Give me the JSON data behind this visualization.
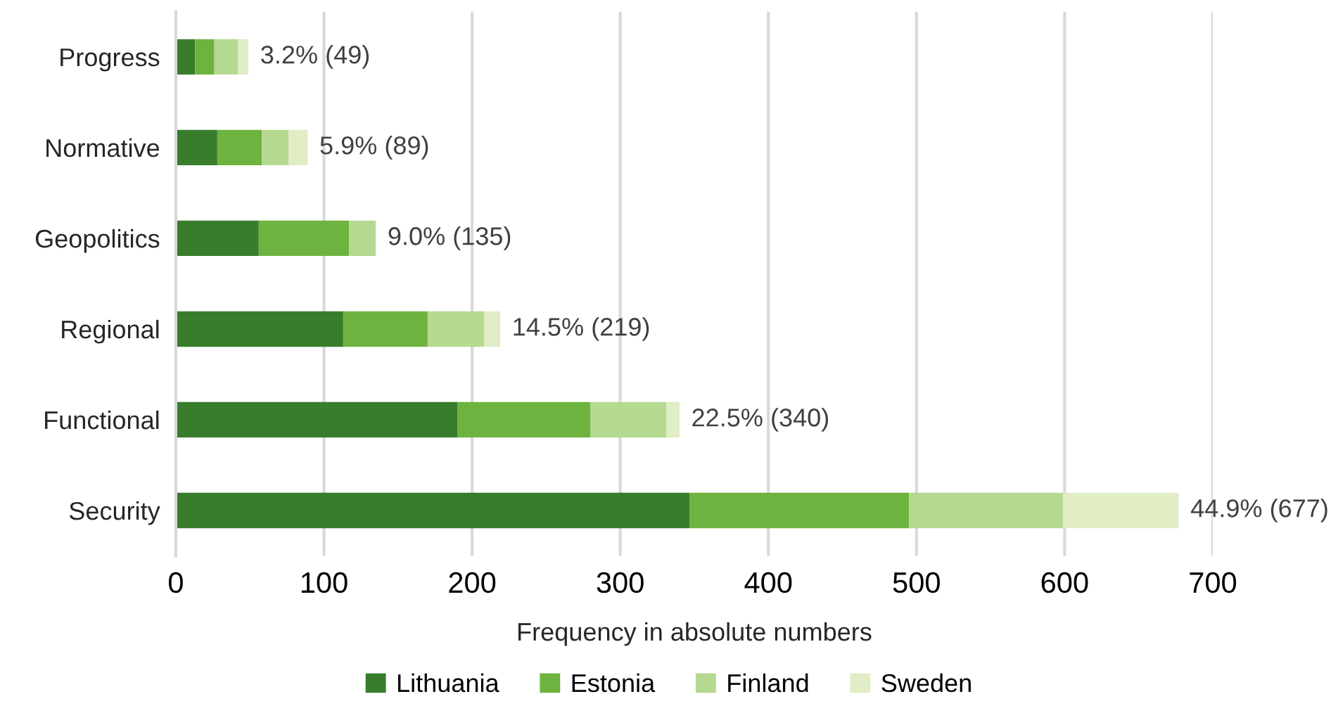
{
  "chart_data": {
    "type": "bar",
    "orientation": "horizontal",
    "stacked": true,
    "xlabel": "Frequency in absolute numbers",
    "categories": [
      "Progress",
      "Normative",
      "Geopolitics",
      "Regional",
      "Functional",
      "Security"
    ],
    "series": [
      {
        "name": "Lithuania",
        "color": "#377d2c",
        "values": [
          13,
          28,
          56,
          113,
          190,
          347
        ]
      },
      {
        "name": "Estonia",
        "color": "#6eb340",
        "values": [
          13,
          30,
          61,
          57,
          90,
          148
        ]
      },
      {
        "name": "Finland",
        "color": "#b5d990",
        "values": [
          16,
          18,
          18,
          38,
          51,
          104
        ]
      },
      {
        "name": "Sweden",
        "color": "#e0edc5",
        "values": [
          7,
          13,
          0,
          11,
          9,
          78
        ]
      }
    ],
    "totals": [
      "3.2% (49)",
      "5.9% (89)",
      "9.0% (135)",
      "14.5% (219)",
      "22.5% (340)",
      "44.9% (677)"
    ],
    "xlim": [
      0,
      700
    ],
    "xticks": [
      0,
      100,
      200,
      300,
      400,
      500,
      600,
      700
    ],
    "grid": "x",
    "legend": "bottom"
  }
}
